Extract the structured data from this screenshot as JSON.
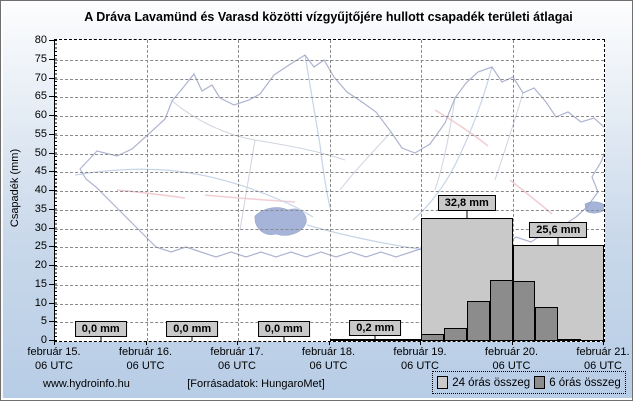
{
  "title": "A Dráva Lavamünd és Varasd közötti vízgyűjtőjére hullott csapadék területi átlagai",
  "y_axis": {
    "label": "Csapadék (mm)"
  },
  "footer": {
    "site": "www.hydroinfo.hu",
    "source": "[Forrásadatok: HungaroMet]"
  },
  "legend": {
    "items": [
      {
        "label": "24 órás összeg",
        "color": "#c9c9c9"
      },
      {
        "label": "6 órás összeg",
        "color": "#8c8c8c"
      }
    ]
  },
  "colors": {
    "background_top": "#fdfdfe",
    "background_bottom": "#b7cde6",
    "plot_background": "#ffffff",
    "bar_24h": "#c9c9c9",
    "bar_6h": "#8c8c8c",
    "gridline": "#8a8a8a",
    "map_outline": "#9aa1c4",
    "map_river": "#c6d5e8",
    "map_border_pink": "#f2ced4",
    "map_lake": "#9cacd4"
  },
  "chart_data": {
    "type": "bar",
    "title": "A Dráva Lavamünd és Varasd közötti vízgyűjtőjére hullott csapadék területi átlagai",
    "xlabel": "",
    "ylabel": "Csapadék (mm)",
    "ylim": [
      0,
      80
    ],
    "ytick_step": 5,
    "grid": true,
    "legend_position": "bottom-right",
    "x_tick_labels": [
      "február 15.",
      "február 16.",
      "február 17.",
      "február 18.",
      "február 19.",
      "február 20.",
      "február 21."
    ],
    "x_tick_sublabel": "06 UTC",
    "series": [
      {
        "name": "24 órás összeg",
        "color": "#c9c9c9"
      },
      {
        "name": "6 órás összeg",
        "color": "#8c8c8c"
      }
    ],
    "periods": [
      {
        "start": "február 15. 06 UTC",
        "end": "február 16. 06 UTC",
        "sum_24h_mm": 0.0,
        "label": "0,0 mm",
        "six_hour_mm": [
          0,
          0,
          0,
          0
        ]
      },
      {
        "start": "február 16. 06 UTC",
        "end": "február 17. 06 UTC",
        "sum_24h_mm": 0.0,
        "label": "0,0 mm",
        "six_hour_mm": [
          0,
          0,
          0,
          0
        ]
      },
      {
        "start": "február 17. 06 UTC",
        "end": "február 18. 06 UTC",
        "sum_24h_mm": 0.0,
        "label": "0,0 mm",
        "six_hour_mm": [
          0,
          0,
          0,
          0
        ]
      },
      {
        "start": "február 18. 06 UTC",
        "end": "február 19. 06 UTC",
        "sum_24h_mm": 0.2,
        "label": "0,2 mm",
        "six_hour_mm": [
          0,
          0,
          0,
          0.2
        ]
      },
      {
        "start": "február 19. 06 UTC",
        "end": "február 20. 06 UTC",
        "sum_24h_mm": 32.8,
        "label": "32,8 mm",
        "six_hour_mm": [
          2.0,
          3.6,
          10.8,
          16.4
        ]
      },
      {
        "start": "február 20. 06 UTC",
        "end": "február 21. 06 UTC",
        "sum_24h_mm": 25.6,
        "label": "25,6 mm",
        "six_hour_mm": [
          16.0,
          9.2,
          0.4,
          0.0
        ]
      }
    ]
  }
}
